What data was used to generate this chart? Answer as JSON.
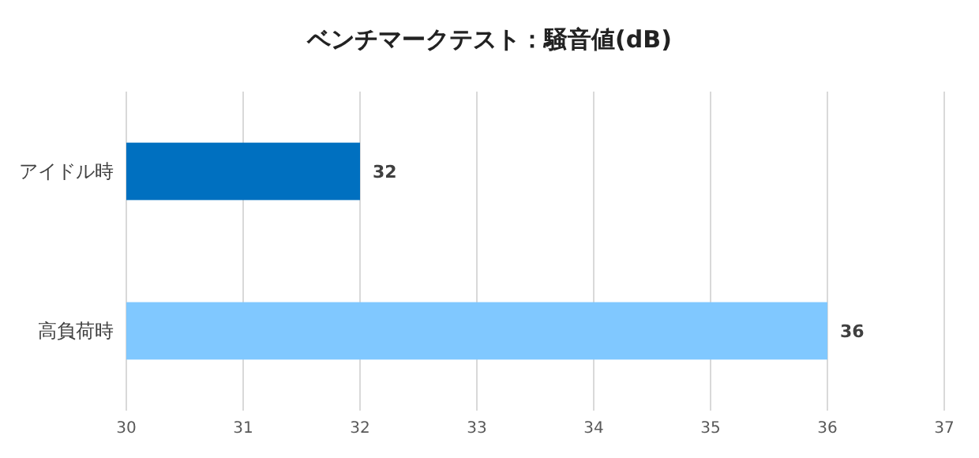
{
  "chart_data": {
    "type": "bar",
    "orientation": "horizontal",
    "title": "ベンチマークテスト：騒音値(dB)",
    "categories": [
      "アイドル時",
      "高負荷時"
    ],
    "values": [
      32,
      36
    ],
    "colors": [
      "#0070c0",
      "#80c8ff"
    ],
    "xlim": [
      30,
      37
    ],
    "xticks": [
      30,
      31,
      32,
      33,
      34,
      35,
      36,
      37
    ],
    "grid": "x",
    "data_labels": true
  }
}
